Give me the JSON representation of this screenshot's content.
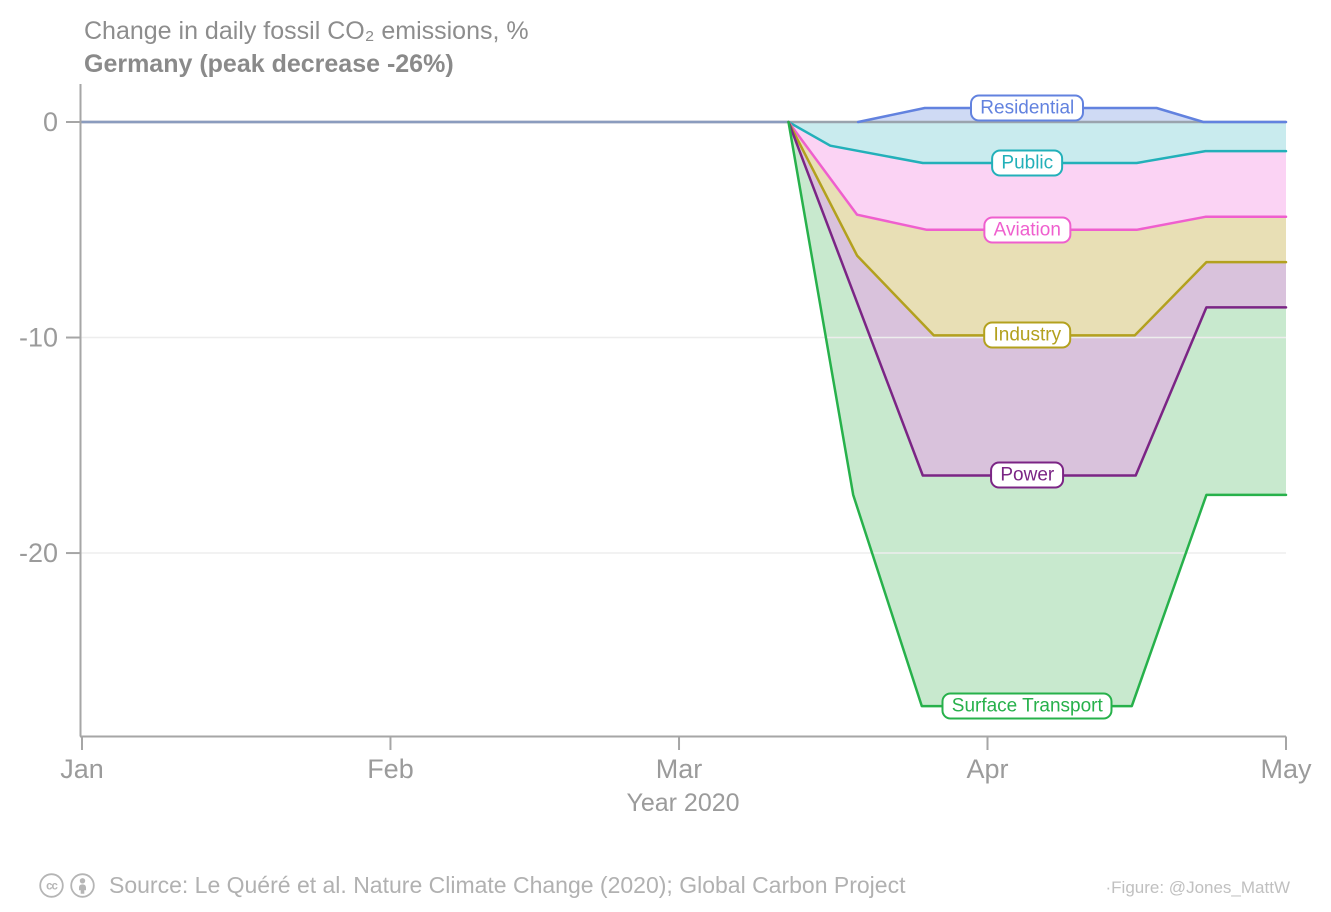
{
  "title": {
    "line1": "Change in daily fossil CO₂ emissions, %",
    "line2": "Germany (peak decrease -26%)"
  },
  "footer": {
    "license_icons": [
      "cc-icon",
      "attribution-icon"
    ],
    "source": "Source: Le Quéré et al. Nature Climate Change (2020); Global Carbon Project",
    "credit": "·Figure: @Jones_MattW"
  },
  "colors": {
    "background": "#ffffff",
    "axis": "#a6a6a6",
    "tick_label": "#9b9b9b",
    "grid": "#ededed",
    "zero_line": "#9aa3ad",
    "zero_line_flat_overlay": "#8b9cbe",
    "title": "#8d8d8d",
    "footer": "#b3b3b3",
    "credit": "#c0c0c0"
  },
  "chart_data": {
    "type": "area",
    "stacked": true,
    "country": "Germany",
    "peak_total_change_pct": -26,
    "xlabel": "Year 2020",
    "x_unit": "days since 2020-01-01",
    "x_ticks": [
      {
        "day": 0,
        "label": "Jan"
      },
      {
        "day": 31,
        "label": "Feb"
      },
      {
        "day": 60,
        "label": "Mar"
      },
      {
        "day": 91,
        "label": "Apr"
      },
      {
        "day": 121,
        "label": "May"
      }
    ],
    "y_ticks": [
      {
        "value": 0,
        "label": "0"
      },
      {
        "value": -10,
        "label": "-10"
      },
      {
        "value": -20,
        "label": "-20"
      }
    ],
    "grid_values": [
      -10,
      -20
    ],
    "ylim": [
      -28.5,
      1.8
    ],
    "legend_position": "inline-labels",
    "note": "boundary points are the plotted cumulative stack edges as [day, percent]; sectors are flat at 0 before mid-March",
    "series": [
      {
        "name": "Residential",
        "label": "Residential",
        "slug": "residential",
        "stack_group": "above",
        "line_color": "#6282df",
        "fill_color": "#cfdaf4",
        "peak_contribution_pct": 0.7,
        "late_april_contribution_pct": 0.0,
        "label_anchor": [
          95,
          0.65
        ],
        "boundary": [
          [
            78,
            0
          ],
          [
            84.7,
            0.65
          ],
          [
            108,
            0.65
          ],
          [
            112.7,
            0
          ],
          [
            121,
            0
          ]
        ]
      },
      {
        "name": "Public",
        "label": "Public",
        "slug": "public",
        "stack_group": "below",
        "line_color": "#22b0b9",
        "fill_color": "#c9ebee",
        "peak_contribution_pct": 1.9,
        "late_april_contribution_pct": 1.35,
        "label_anchor": [
          95,
          -1.9
        ],
        "boundary": [
          [
            71,
            0
          ],
          [
            75.2,
            -1.1
          ],
          [
            84.5,
            -1.9
          ],
          [
            106,
            -1.9
          ],
          [
            112.9,
            -1.35
          ],
          [
            121,
            -1.35
          ]
        ]
      },
      {
        "name": "Aviation",
        "label": "Aviation",
        "slug": "aviation",
        "stack_group": "below",
        "line_color": "#ef5fce",
        "fill_color": "#fbd3f4",
        "peak_contribution_pct": 3.1,
        "late_april_contribution_pct": 3.05,
        "label_anchor": [
          95,
          -5.0
        ],
        "boundary": [
          [
            71,
            0
          ],
          [
            77.9,
            -4.3
          ],
          [
            84.9,
            -5.0
          ],
          [
            106,
            -5.0
          ],
          [
            112.9,
            -4.4
          ],
          [
            121,
            -4.4
          ]
        ]
      },
      {
        "name": "Industry",
        "label": "Industry",
        "slug": "industry",
        "stack_group": "below",
        "line_color": "#b3a11e",
        "fill_color": "#e8dfb5",
        "peak_contribution_pct": 4.9,
        "late_april_contribution_pct": 2.1,
        "label_anchor": [
          95,
          -9.9
        ],
        "boundary": [
          [
            71,
            0
          ],
          [
            77.9,
            -6.2
          ],
          [
            85.6,
            -9.9
          ],
          [
            105.8,
            -9.9
          ],
          [
            113,
            -6.5
          ],
          [
            121,
            -6.5
          ]
        ]
      },
      {
        "name": "Power",
        "label": "Power",
        "slug": "power",
        "stack_group": "below",
        "line_color": "#7b2585",
        "fill_color": "#d9c2dc",
        "peak_contribution_pct": 6.5,
        "late_april_contribution_pct": 2.1,
        "label_anchor": [
          95,
          -16.4
        ],
        "boundary": [
          [
            71,
            0
          ],
          [
            84.5,
            -16.4
          ],
          [
            105.9,
            -16.4
          ],
          [
            113,
            -8.6
          ],
          [
            121,
            -8.6
          ]
        ]
      },
      {
        "name": "Surface Transport",
        "label": "Surface Transport",
        "slug": "surface-transport",
        "stack_group": "below",
        "line_color": "#27b14b",
        "fill_color": "#c8e9ce",
        "peak_contribution_pct": 10.7,
        "late_april_contribution_pct": 8.7,
        "label_anchor": [
          95,
          -27.1
        ],
        "boundary": [
          [
            71,
            0
          ],
          [
            77.5,
            -17.3
          ],
          [
            84.4,
            -27.1
          ],
          [
            105.5,
            -27.1
          ],
          [
            113,
            -17.3
          ],
          [
            121,
            -17.3
          ]
        ]
      }
    ]
  }
}
